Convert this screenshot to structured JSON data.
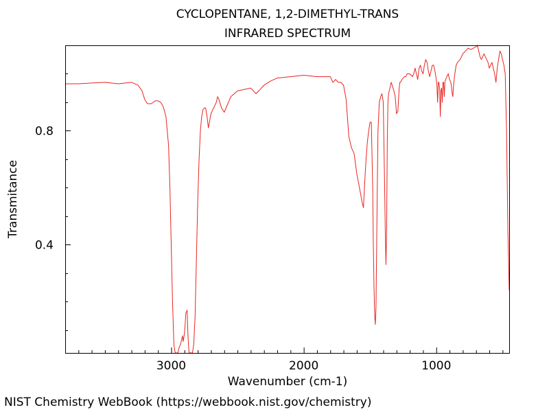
{
  "chart_data": {
    "type": "line",
    "title": "CYCLOPENTANE, 1,2-DIMETHYL-TRANS",
    "subtitle": "INFRARED SPECTRUM",
    "xlabel": "Wavenumber (cm-1)",
    "ylabel": "Transmitance",
    "xlim": [
      3800,
      450
    ],
    "ylim": [
      0.02,
      1.1
    ],
    "x_ticks": [
      3000,
      2000,
      1000
    ],
    "x_tick_labels": [
      "3000",
      "2000",
      "1000"
    ],
    "y_ticks": [
      0.4,
      0.8
    ],
    "y_tick_labels": [
      "0.4",
      "0.8"
    ],
    "grid": false,
    "legend": "none",
    "series": [
      {
        "color": "#e8231f",
        "x": [
          3800,
          3700,
          3500,
          3400,
          3300,
          3250,
          3220,
          3200,
          3180,
          3150,
          3120,
          3100,
          3080,
          3060,
          3040,
          3020,
          3010,
          3000,
          2990,
          2980,
          2970,
          2965,
          2960,
          2950,
          2940,
          2930,
          2925,
          2920,
          2915,
          2910,
          2900,
          2895,
          2890,
          2880,
          2875,
          2870,
          2865,
          2860,
          2855,
          2850,
          2840,
          2830,
          2820,
          2810,
          2800,
          2790,
          2780,
          2770,
          2760,
          2750,
          2740,
          2730,
          2720,
          2700,
          2680,
          2660,
          2650,
          2640,
          2620,
          2600,
          2550,
          2500,
          2450,
          2400,
          2360,
          2340,
          2320,
          2300,
          2250,
          2200,
          2100,
          2000,
          1900,
          1800,
          1780,
          1760,
          1740,
          1720,
          1700,
          1680,
          1660,
          1640,
          1620,
          1600,
          1580,
          1560,
          1550,
          1540,
          1530,
          1520,
          1510,
          1500,
          1490,
          1480,
          1475,
          1470,
          1465,
          1460,
          1455,
          1450,
          1445,
          1440,
          1430,
          1420,
          1410,
          1400,
          1390,
          1385,
          1380,
          1375,
          1370,
          1365,
          1360,
          1350,
          1340,
          1320,
          1310,
          1300,
          1290,
          1280,
          1275,
          1270,
          1260,
          1250,
          1240,
          1230,
          1220,
          1200,
          1180,
          1170,
          1160,
          1150,
          1140,
          1130,
          1120,
          1110,
          1100,
          1090,
          1080,
          1070,
          1060,
          1050,
          1040,
          1030,
          1020,
          1010,
          1000,
          995,
          990,
          985,
          980,
          975,
          970,
          965,
          960,
          955,
          950,
          945,
          940,
          935,
          930,
          920,
          910,
          900,
          890,
          880,
          875,
          870,
          860,
          850,
          840,
          820,
          800,
          780,
          760,
          740,
          720,
          700,
          690,
          680,
          670,
          660,
          650,
          640,
          630,
          620,
          610,
          600,
          590,
          580,
          570,
          560,
          550,
          540,
          530,
          520,
          510,
          500,
          490,
          480,
          470,
          460,
          450
        ],
        "y": [
          0.965,
          0.965,
          0.97,
          0.965,
          0.97,
          0.96,
          0.94,
          0.91,
          0.895,
          0.895,
          0.905,
          0.905,
          0.9,
          0.885,
          0.85,
          0.75,
          0.6,
          0.4,
          0.2,
          0.05,
          0.02,
          0.02,
          0.02,
          0.02,
          0.04,
          0.05,
          0.06,
          0.07,
          0.08,
          0.06,
          0.09,
          0.12,
          0.16,
          0.17,
          0.1,
          0.05,
          0.02,
          0.02,
          0.02,
          0.02,
          0.02,
          0.05,
          0.15,
          0.35,
          0.55,
          0.7,
          0.8,
          0.85,
          0.875,
          0.88,
          0.88,
          0.85,
          0.81,
          0.86,
          0.88,
          0.9,
          0.92,
          0.91,
          0.88,
          0.865,
          0.92,
          0.94,
          0.945,
          0.95,
          0.93,
          0.94,
          0.95,
          0.96,
          0.975,
          0.985,
          0.99,
          0.995,
          0.99,
          0.99,
          0.97,
          0.98,
          0.97,
          0.97,
          0.96,
          0.91,
          0.78,
          0.74,
          0.72,
          0.65,
          0.6,
          0.55,
          0.53,
          0.62,
          0.7,
          0.76,
          0.8,
          0.83,
          0.83,
          0.6,
          0.4,
          0.25,
          0.15,
          0.12,
          0.18,
          0.4,
          0.6,
          0.8,
          0.9,
          0.92,
          0.93,
          0.9,
          0.6,
          0.45,
          0.33,
          0.45,
          0.75,
          0.9,
          0.93,
          0.95,
          0.97,
          0.94,
          0.92,
          0.86,
          0.87,
          0.95,
          0.97,
          0.97,
          0.98,
          0.985,
          0.99,
          0.99,
          1.0,
          1.0,
          0.99,
          1.0,
          1.02,
          1.0,
          0.98,
          1.02,
          1.03,
          1.01,
          1.0,
          1.03,
          1.05,
          1.04,
          1.01,
          0.99,
          1.01,
          1.03,
          1.03,
          1.01,
          0.98,
          0.96,
          0.9,
          0.97,
          0.97,
          0.95,
          0.85,
          0.94,
          0.95,
          0.9,
          0.97,
          0.97,
          0.92,
          0.97,
          0.98,
          0.99,
          1.0,
          0.98,
          0.97,
          0.93,
          0.92,
          0.96,
          1.0,
          1.03,
          1.04,
          1.05,
          1.07,
          1.08,
          1.09,
          1.085,
          1.09,
          1.095,
          1.1,
          1.08,
          1.06,
          1.05,
          1.06,
          1.07,
          1.06,
          1.05,
          1.04,
          1.02,
          1.03,
          1.04,
          1.02,
          1.0,
          0.97,
          1.02,
          1.05,
          1.08,
          1.07,
          1.05,
          1.03,
          1.0,
          0.8,
          0.45,
          0.24
        ]
      }
    ]
  },
  "footer": "NIST Chemistry WebBook (https://webbook.nist.gov/chemistry)"
}
